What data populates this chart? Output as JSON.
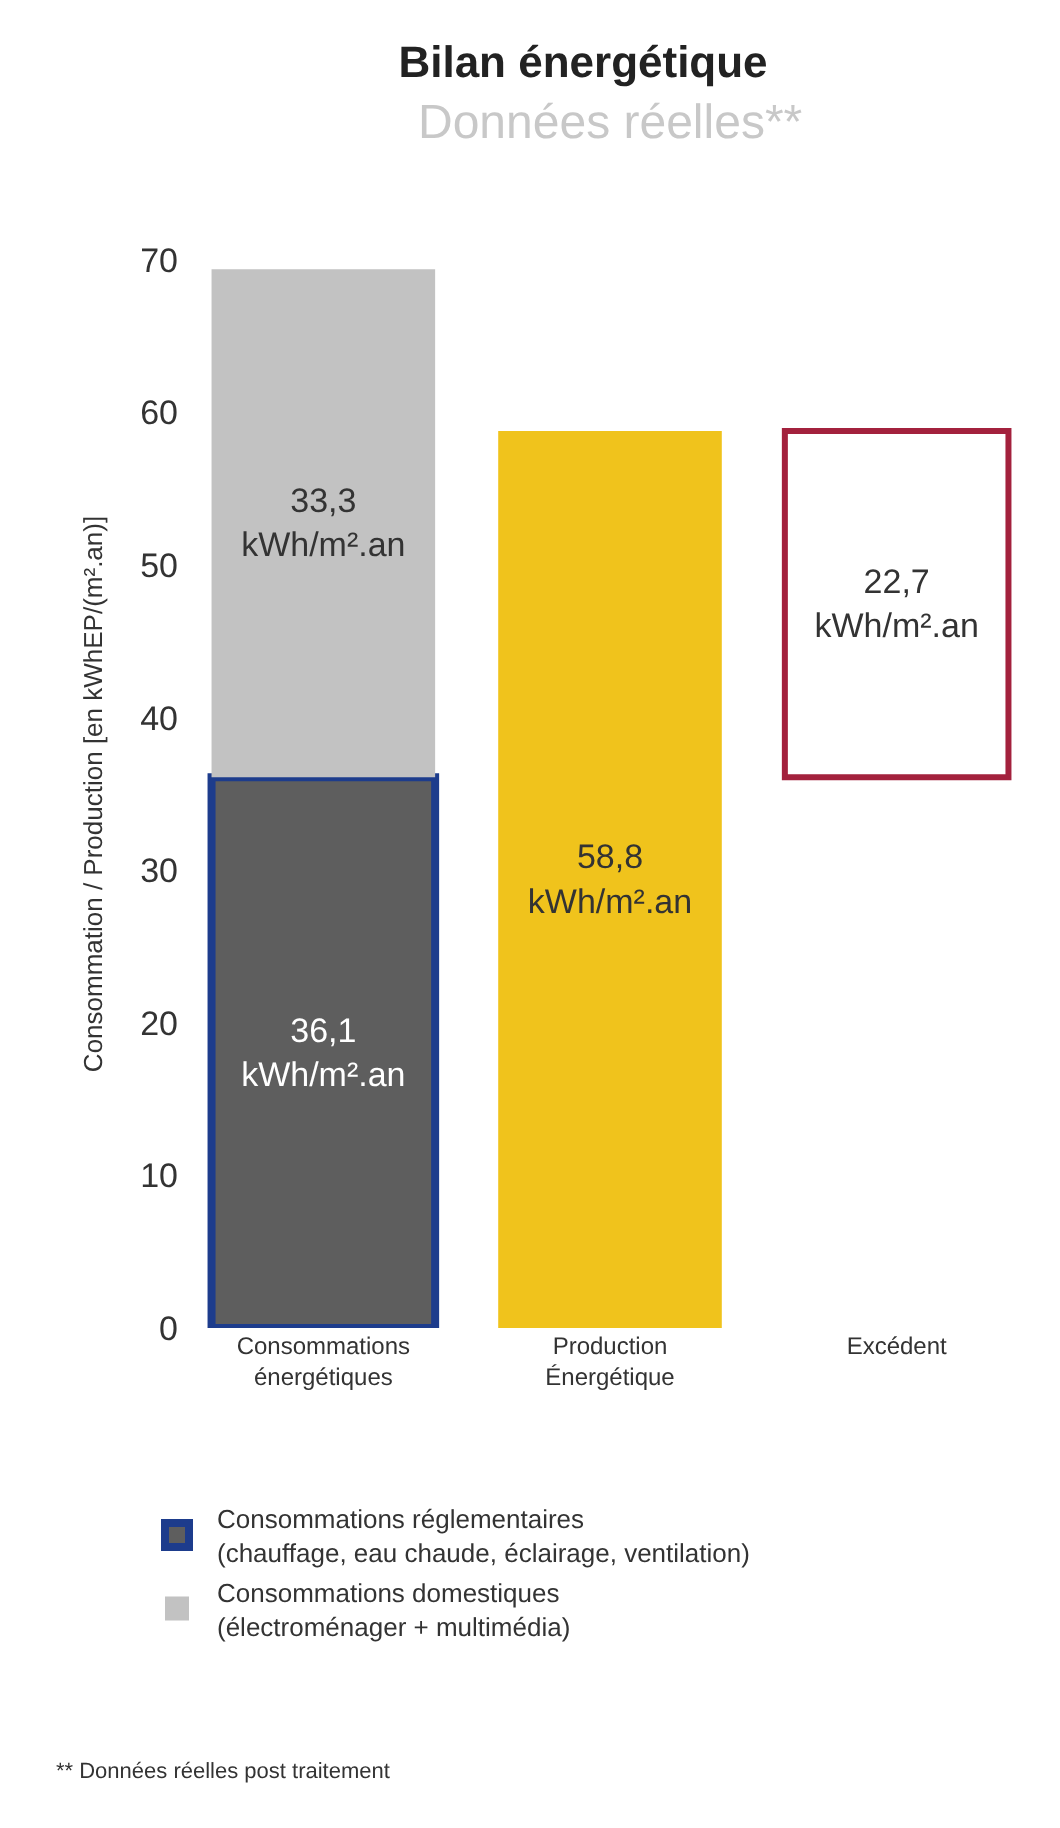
{
  "chart_data": {
    "type": "bar",
    "title": "Bilan énergétique",
    "subtitle": "Données réelles**",
    "ylabel": "Consommation / Production [en kWhEP/(m².an)]",
    "categories": [
      "Consommations énergétiques",
      "Production Énergétique",
      "Excédent"
    ],
    "stacked": true,
    "series": [
      {
        "name": "Consommations réglementaires (chauffage, eau chaude, éclairage, ventilation)",
        "color": "#5e5e5e",
        "values": [
          36.1,
          null,
          null
        ],
        "value_labels": [
          "36,1 kWh/m².an",
          null,
          null
        ]
      },
      {
        "name": "Consommations domestiques (électroménager + multimédia)",
        "color": "#c2c2c2",
        "values": [
          33.3,
          null,
          null
        ],
        "value_labels": [
          "33,3 kWh/m².an",
          null,
          null
        ]
      },
      {
        "color": "#f0c31c",
        "values": [
          null,
          58.8,
          null
        ],
        "value_labels": [
          null,
          "58,8 kWh/m².an",
          null
        ]
      },
      {
        "color": "#a3213d",
        "values": [
          null,
          null,
          22.7
        ],
        "base": [
          null,
          null,
          36.1
        ],
        "value_labels": [
          null,
          null,
          "22,7 kWh/m².an"
        ]
      }
    ],
    "ylim": [
      0,
      70
    ],
    "yticks": [
      0,
      10,
      20,
      30,
      40,
      50,
      60,
      70
    ],
    "legend": "bottom",
    "annotations": [
      "** Données réelles post traitement"
    ]
  }
}
